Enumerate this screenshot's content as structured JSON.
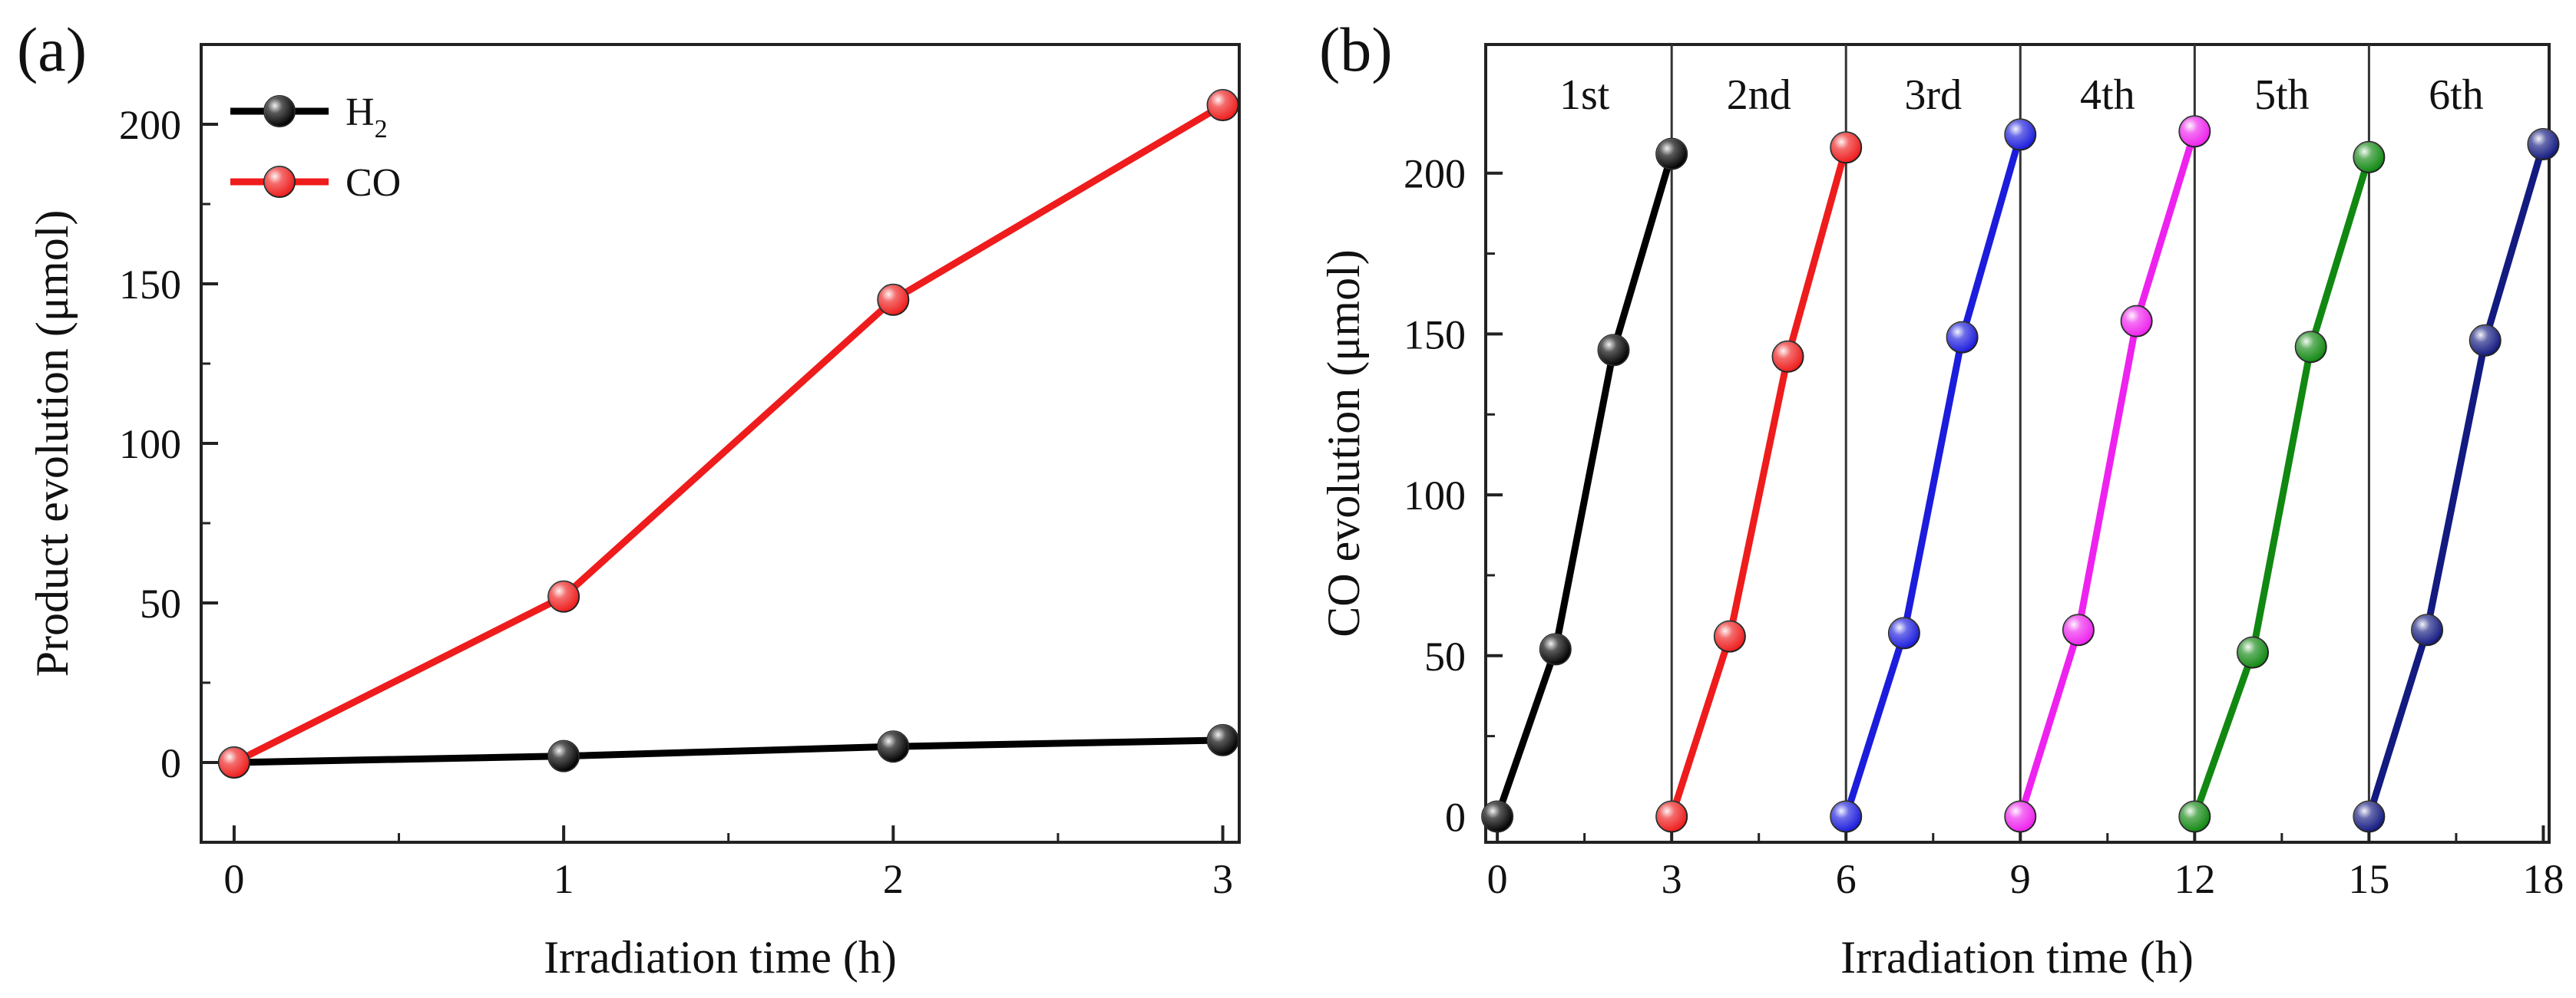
{
  "panels": {
    "a": {
      "label": "(a)"
    },
    "b": {
      "label": "(b)"
    }
  },
  "chart_data": [
    {
      "id": "a",
      "type": "line",
      "title": "",
      "xlabel": "Irradiation time (h)",
      "ylabel": "Product evolution (μmol)",
      "xlim": [
        -0.1,
        3.05
      ],
      "ylim": [
        -25,
        225
      ],
      "xticks": [
        0,
        1,
        2,
        3
      ],
      "yticks": [
        0,
        50,
        100,
        150,
        200
      ],
      "grid": false,
      "legend_position": "top-left",
      "series": [
        {
          "name": "H",
          "sub": "2",
          "color": "#000000",
          "x": [
            0,
            1,
            2,
            3
          ],
          "y": [
            0,
            2,
            5,
            7
          ]
        },
        {
          "name": "CO",
          "sub": "",
          "color": "#ee1c1c",
          "x": [
            0,
            1,
            2,
            3
          ],
          "y": [
            0,
            52,
            145,
            206
          ]
        }
      ]
    },
    {
      "id": "b",
      "type": "line",
      "title": "",
      "xlabel": "Irradiation time (h)",
      "ylabel": "CO evolution (μmol)",
      "xlim": [
        -0.2,
        18.1
      ],
      "ylim": [
        -8,
        240
      ],
      "xticks": [
        0,
        3,
        6,
        9,
        12,
        15,
        18
      ],
      "yticks": [
        0,
        50,
        100,
        150,
        200
      ],
      "grid": false,
      "dividers": [
        3,
        6,
        9,
        12,
        15
      ],
      "cycle_labels": [
        {
          "text": "1st",
          "x": 1.5
        },
        {
          "text": "2nd",
          "x": 4.5
        },
        {
          "text": "3rd",
          "x": 7.5
        },
        {
          "text": "4th",
          "x": 10.5
        },
        {
          "text": "5th",
          "x": 13.5
        },
        {
          "text": "6th",
          "x": 16.5
        }
      ],
      "series": [
        {
          "name": "1st",
          "color": "#000000",
          "x": [
            0,
            1,
            2,
            3
          ],
          "y": [
            0,
            52,
            145,
            206
          ]
        },
        {
          "name": "2nd",
          "color": "#ee1c1c",
          "x": [
            3,
            4,
            5,
            6
          ],
          "y": [
            0,
            56,
            143,
            208
          ]
        },
        {
          "name": "3rd",
          "color": "#1c1cdd",
          "x": [
            6,
            7,
            8,
            9
          ],
          "y": [
            0,
            57,
            149,
            212
          ]
        },
        {
          "name": "4th",
          "color": "#ee22ee",
          "x": [
            9,
            10,
            11,
            12
          ],
          "y": [
            0,
            58,
            154,
            213
          ]
        },
        {
          "name": "5th",
          "color": "#118811",
          "x": [
            12,
            13,
            14,
            15
          ],
          "y": [
            0,
            51,
            146,
            205
          ]
        },
        {
          "name": "6th",
          "color": "#131a80",
          "x": [
            15,
            16,
            17,
            18
          ],
          "y": [
            0,
            58,
            148,
            209
          ]
        }
      ]
    }
  ]
}
